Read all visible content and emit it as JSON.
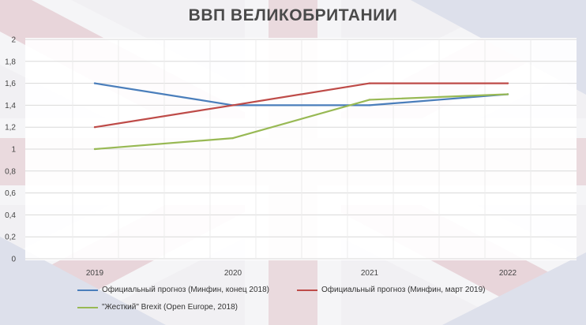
{
  "chart_data": {
    "type": "line",
    "title": "ВВП ВЕЛИКОБРИТАНИИ",
    "xlabel": "",
    "ylabel": "",
    "categories": [
      "2019",
      "2020",
      "2021",
      "2022"
    ],
    "y_ticks": [
      "0",
      "0,2",
      "0,4",
      "0,6",
      "0,8",
      "1",
      "1,2",
      "1,4",
      "1,6",
      "1,8",
      "2"
    ],
    "ylim": [
      0,
      2
    ],
    "grid": true,
    "legend_position": "bottom",
    "series": [
      {
        "name": "Официальный прогноз (Минфин, конец 2018)",
        "color": "#4a7ebb",
        "values": [
          1.6,
          1.4,
          1.4,
          1.5
        ]
      },
      {
        "name": "Официальный прогноз (Минфин, март 2019)",
        "color": "#be4b48",
        "values": [
          1.2,
          1.4,
          1.6,
          1.6
        ]
      },
      {
        "name": "\"Жесткий\" Brexit (Open Europe, 2018)",
        "color": "#98b954",
        "values": [
          1.0,
          1.1,
          1.45,
          1.5
        ]
      }
    ]
  }
}
